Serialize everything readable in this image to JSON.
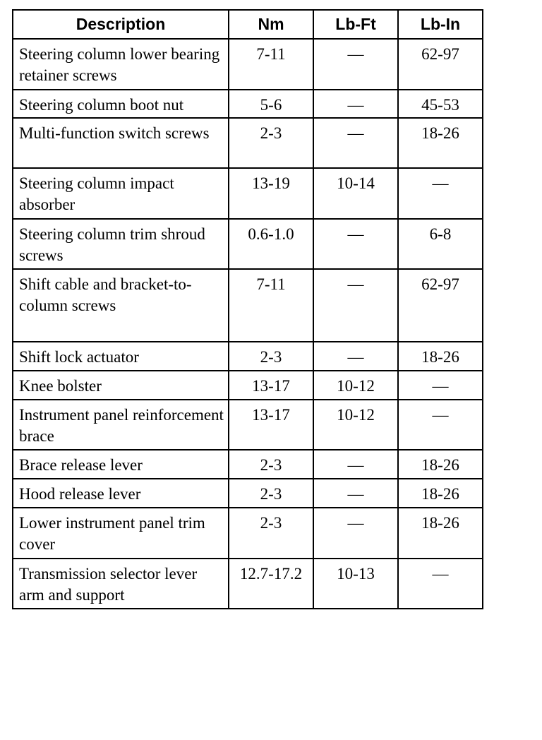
{
  "table": {
    "header": [
      "Description",
      "Nm",
      "Lb-Ft",
      "Lb-In"
    ],
    "rows": [
      [
        "Steering column lower bearing retainer screws",
        "7-11",
        "—",
        "62-97"
      ],
      [
        "Steering column boot nut",
        "5-6",
        "—",
        "45-53"
      ],
      [
        "Multi-function switch screws",
        "2-3",
        "—",
        "18-26"
      ],
      [
        "Steering column impact absorber",
        "13-19",
        "10-14",
        "—"
      ],
      [
        "Steering column trim shroud screws",
        "0.6-1.0",
        "—",
        "6-8"
      ],
      [
        "Shift cable and bracket-to-column screws",
        "7-11",
        "—",
        "62-97"
      ],
      [
        "Shift lock actuator",
        "2-3",
        "—",
        "18-26"
      ],
      [
        "Knee bolster",
        "13-17",
        "10-12",
        "—"
      ],
      [
        "Instrument panel reinforcement brace",
        "13-17",
        "10-12",
        "—"
      ],
      [
        "Brace release lever",
        "2-3",
        "—",
        "18-26"
      ],
      [
        "Hood release lever",
        "2-3",
        "—",
        "18-26"
      ],
      [
        "Lower instrument panel trim cover",
        "2-3",
        "—",
        "18-26"
      ],
      [
        "Transmission selector lever arm and support",
        "12.7-17.2",
        "10-13",
        "—"
      ]
    ]
  }
}
